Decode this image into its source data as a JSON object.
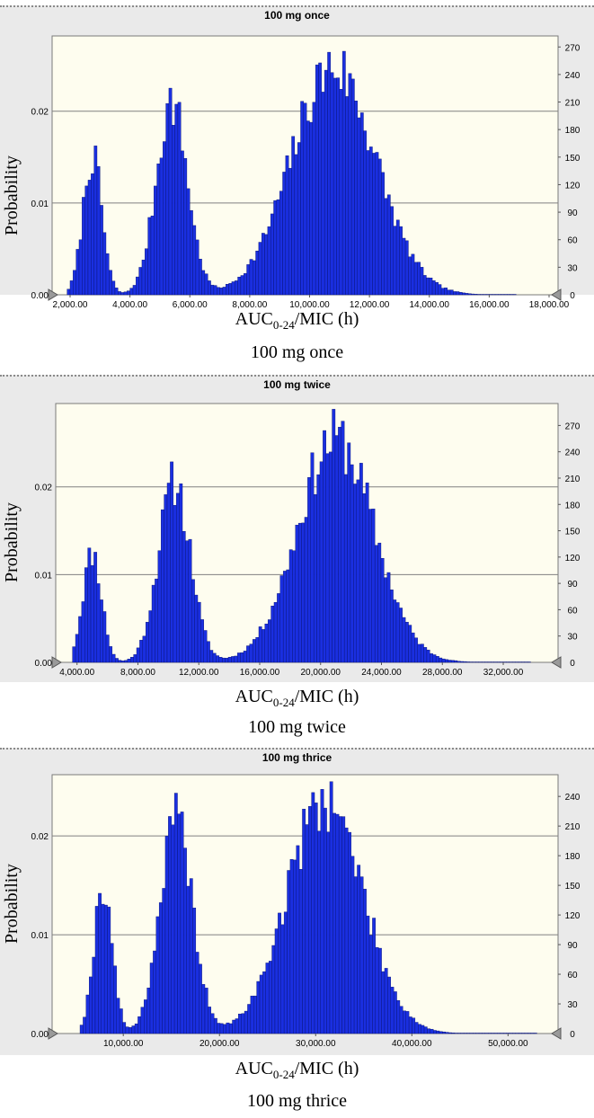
{
  "chart_data": [
    {
      "type": "bar",
      "title": "100 mg once",
      "caption": "100 mg once",
      "xlabel_main": "AUC",
      "xlabel_sub": "0-24",
      "xlabel_rest": "/MIC (h)",
      "ylabel": "Probability",
      "xlim": [
        1400,
        18300
      ],
      "ylim": [
        0,
        0.0282
      ],
      "y2lim": [
        0,
        282
      ],
      "x_ticks": [
        "2,000.00",
        "4,000.00",
        "6,000.00",
        "8,000.00",
        "10,000.00",
        "12,000.00",
        "14,000.00",
        "16,000.00",
        "18,000.00"
      ],
      "x_tick_values": [
        2000,
        4000,
        6000,
        8000,
        10000,
        12000,
        14000,
        16000,
        18000
      ],
      "y_ticks": [
        "0.00",
        "0.01",
        "0.02"
      ],
      "y_tick_values": [
        0,
        0.01,
        0.02
      ],
      "y2_ticks": [
        "0",
        "30",
        "60",
        "90",
        "120",
        "150",
        "180",
        "210",
        "240",
        "270"
      ],
      "y2_tick_values": [
        0,
        30,
        60,
        90,
        120,
        150,
        180,
        210,
        240,
        270
      ],
      "peaks": [
        {
          "center": 2750,
          "sigma": 320,
          "height": 0.015
        },
        {
          "center": 5400,
          "sigma": 520,
          "height": 0.021
        },
        {
          "center": 10800,
          "sigma": 1400,
          "height": 0.0248
        }
      ],
      "bin_start": 1900,
      "bin_end": 16900,
      "bins": 150,
      "seed": 7
    },
    {
      "type": "bar",
      "title": "100 mg twice",
      "caption": "100 mg twice",
      "xlabel_main": "AUC",
      "xlabel_sub": "0-24",
      "xlabel_rest": "/MIC (h)",
      "ylabel": "Probability",
      "xlim": [
        2600,
        35600
      ],
      "ylim": [
        0,
        0.0295
      ],
      "y2lim": [
        0,
        295
      ],
      "x_ticks": [
        "4,000.00",
        "8,000.00",
        "12,000.00",
        "16,000.00",
        "20,000.00",
        "24,000.00",
        "28,000.00",
        "32,000.00"
      ],
      "x_tick_values": [
        4000,
        8000,
        12000,
        16000,
        20000,
        24000,
        28000,
        32000
      ],
      "y_ticks": [
        "0.00",
        "0.01",
        "0.02"
      ],
      "y_tick_values": [
        0,
        0.01,
        0.02
      ],
      "y2_ticks": [
        "0",
        "30",
        "60",
        "90",
        "120",
        "150",
        "180",
        "210",
        "240",
        "270"
      ],
      "y2_tick_values": [
        0,
        30,
        60,
        90,
        120,
        150,
        180,
        210,
        240,
        270
      ],
      "peaks": [
        {
          "center": 5000,
          "sigma": 620,
          "height": 0.0125
        },
        {
          "center": 10400,
          "sigma": 1050,
          "height": 0.0205
        },
        {
          "center": 21000,
          "sigma": 2500,
          "height": 0.0255
        }
      ],
      "bin_start": 3700,
      "bin_end": 33800,
      "bins": 150,
      "seed": 11
    },
    {
      "type": "bar",
      "title": "100 mg thrice",
      "caption": "100 mg thrice",
      "xlabel_main": "AUC",
      "xlabel_sub": "0-24",
      "xlabel_rest": "/MIC (h)",
      "ylabel": "Probability",
      "xlim": [
        2600,
        55200
      ],
      "ylim": [
        0,
        0.0262
      ],
      "y2lim": [
        0,
        262
      ],
      "x_ticks": [
        "10,000.00",
        "20,000.00",
        "30,000.00",
        "40,000.00",
        "50,000.00"
      ],
      "x_tick_values": [
        10000,
        20000,
        30000,
        40000,
        50000
      ],
      "y_ticks": [
        "0.00",
        "0.01",
        "0.02"
      ],
      "y_tick_values": [
        0,
        0.01,
        0.02
      ],
      "y2_ticks": [
        "0",
        "30",
        "60",
        "90",
        "120",
        "150",
        "180",
        "210",
        "240"
      ],
      "y2_tick_values": [
        0,
        30,
        60,
        90,
        120,
        150,
        180,
        210,
        240
      ],
      "peaks": [
        {
          "center": 7900,
          "sigma": 950,
          "height": 0.015
        },
        {
          "center": 15500,
          "sigma": 1700,
          "height": 0.0215
        },
        {
          "center": 31000,
          "sigma": 3900,
          "height": 0.0238
        }
      ],
      "bin_start": 5500,
      "bin_end": 53000,
      "bins": 150,
      "seed": 19
    }
  ]
}
